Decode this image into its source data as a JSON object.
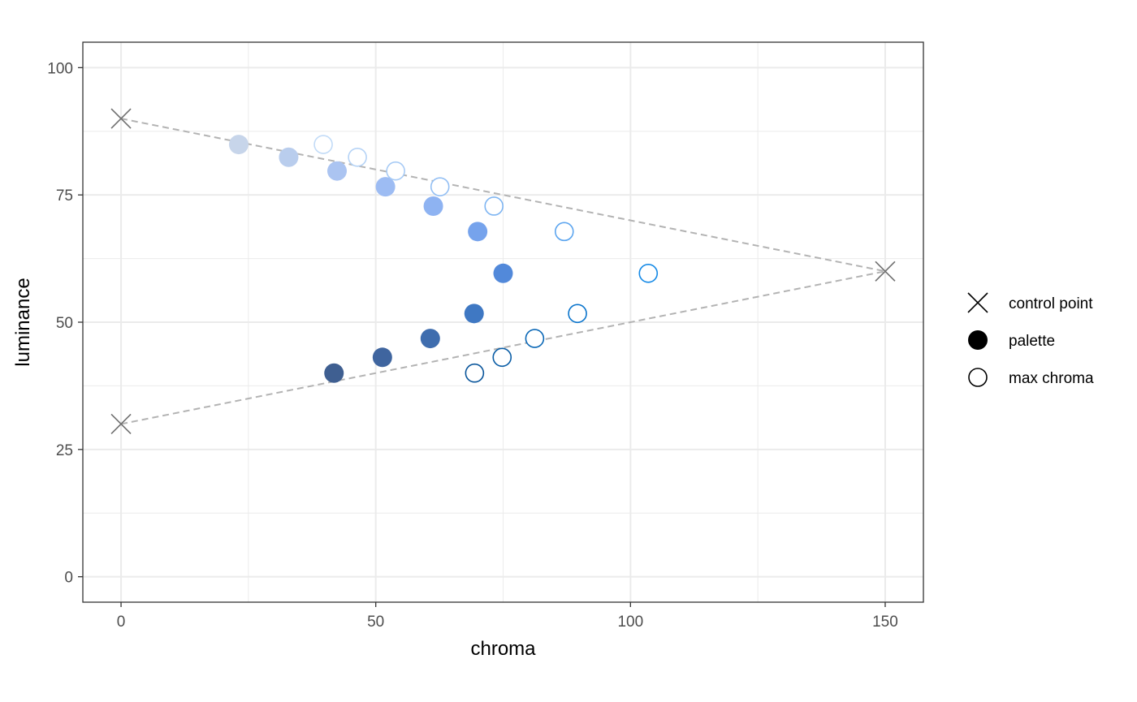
{
  "chart_data": {
    "type": "scatter",
    "xlabel": "chroma",
    "ylabel": "luminance",
    "xlim": [
      -7.5,
      157.5
    ],
    "ylim": [
      -5,
      105
    ],
    "x_ticks": [
      0,
      50,
      100,
      150
    ],
    "y_ticks": [
      0,
      25,
      50,
      75,
      100
    ],
    "x_tick_labels": [
      "0",
      "50",
      "100",
      "150"
    ],
    "y_tick_labels": [
      "0",
      "25",
      "50",
      "75",
      "100"
    ],
    "grid": true,
    "legend_position": "right",
    "legend": [
      {
        "label": "control point",
        "shape": "cross"
      },
      {
        "label": "palette",
        "shape": "filled-circle"
      },
      {
        "label": "max chroma",
        "shape": "open-circle"
      }
    ],
    "control_line_color": "#b3b3b3",
    "control_point_color": "#707070",
    "control_points": [
      {
        "x": 0,
        "y": 90
      },
      {
        "x": 150,
        "y": 60
      },
      {
        "x": 0,
        "y": 30
      }
    ],
    "series": [
      {
        "name": "palette",
        "shape": "filled-circle",
        "points": [
          {
            "x": 41.8,
            "y": 40.0,
            "color": "#3f5f91"
          },
          {
            "x": 51.3,
            "y": 43.1,
            "color": "#3f659f"
          },
          {
            "x": 60.7,
            "y": 46.8,
            "color": "#3f6dae"
          },
          {
            "x": 69.3,
            "y": 51.7,
            "color": "#3f78c3"
          },
          {
            "x": 75.0,
            "y": 59.6,
            "color": "#5289da"
          },
          {
            "x": 70.0,
            "y": 67.8,
            "color": "#76a3ec"
          },
          {
            "x": 61.3,
            "y": 72.8,
            "color": "#8eb3f2"
          },
          {
            "x": 51.9,
            "y": 76.6,
            "color": "#9dbcf3"
          },
          {
            "x": 42.4,
            "y": 79.7,
            "color": "#abc4f1"
          },
          {
            "x": 32.9,
            "y": 82.4,
            "color": "#b9cded"
          },
          {
            "x": 23.1,
            "y": 84.9,
            "color": "#c7d5ea"
          }
        ]
      },
      {
        "name": "max chroma",
        "shape": "open-circle",
        "points": [
          {
            "x": 69.4,
            "y": 40.0,
            "color": "#08549a"
          },
          {
            "x": 74.8,
            "y": 43.1,
            "color": "#0a5da6"
          },
          {
            "x": 81.2,
            "y": 46.8,
            "color": "#0a67b6"
          },
          {
            "x": 89.6,
            "y": 51.7,
            "color": "#0a74cc"
          },
          {
            "x": 103.5,
            "y": 59.6,
            "color": "#1489e6"
          },
          {
            "x": 87.0,
            "y": 67.8,
            "color": "#5ca5ef"
          },
          {
            "x": 73.2,
            "y": 72.8,
            "color": "#7eb5f2"
          },
          {
            "x": 62.6,
            "y": 76.6,
            "color": "#93bff4"
          },
          {
            "x": 53.9,
            "y": 79.7,
            "color": "#a6caf5"
          },
          {
            "x": 46.4,
            "y": 82.4,
            "color": "#b5d3f6"
          },
          {
            "x": 39.7,
            "y": 84.9,
            "color": "#c2dbf7"
          }
        ]
      }
    ]
  }
}
